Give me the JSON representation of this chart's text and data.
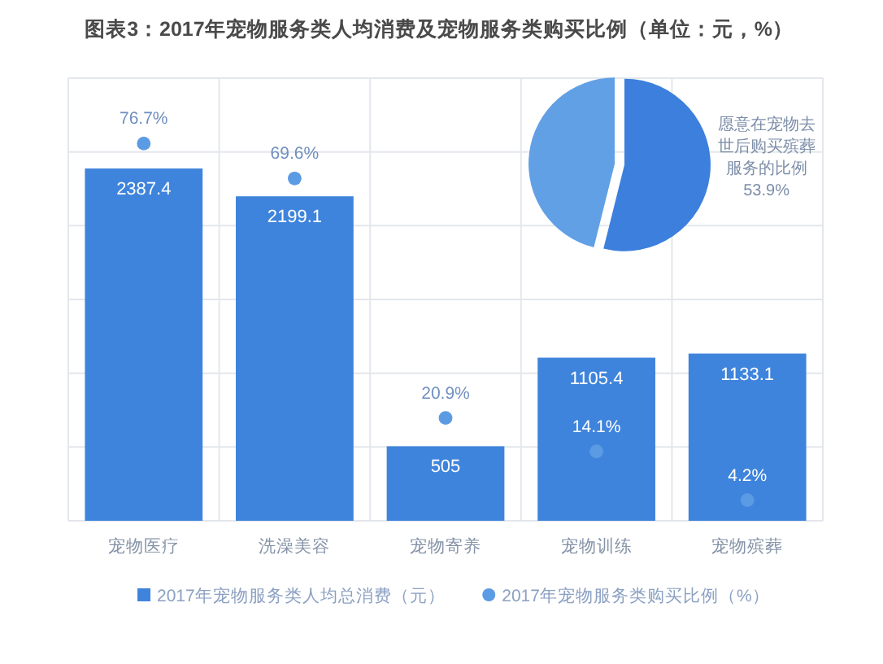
{
  "chart_data": [
    {
      "type": "bar",
      "title": "图表3：2017年宠物服务类人均消费及宠物服务类购买比例（单位：元，%）",
      "categories": [
        "宠物医疗",
        "洗澡美容",
        "宠物寄养",
        "宠物训练",
        "宠物殡葬"
      ],
      "series": [
        {
          "name": "2017年宠物服务类人均总消费（元）",
          "color": "#3f84dc",
          "values": [
            2387.4,
            2199.1,
            505,
            1105.4,
            1133.1
          ],
          "value_labels": [
            "2387.4",
            "2199.1",
            "505",
            "1105.4",
            "1133.1"
          ]
        },
        {
          "name": "2017年宠物服务类购买比例（%）",
          "type": "scatter",
          "axis": "y2",
          "color": "#5b9be3",
          "values": [
            76.7,
            69.6,
            20.9,
            14.1,
            4.2
          ],
          "value_labels": [
            "76.7%",
            "69.6%",
            "20.9%",
            "14.1%",
            "4.2%"
          ]
        }
      ],
      "ylim": [
        0,
        3000
      ],
      "yticks": [
        {
          "value": 0,
          "label": null
        },
        {
          "value": 500,
          "label": null
        },
        {
          "value": 1000,
          "label": null
        },
        {
          "value": 1500,
          "label": null
        },
        {
          "value": 2000,
          "label": null
        },
        {
          "value": 2500,
          "label": null
        },
        {
          "value": 3000,
          "label": null
        }
      ],
      "y2lim": [
        0,
        90
      ],
      "grid": true,
      "tick_labels": "x",
      "legend": "bottom",
      "marker": "circle"
    },
    {
      "type": "pie",
      "categories": [
        "愿意在宠物去世后购买殡葬服务的比例",
        null
      ],
      "values": [
        53.9,
        46.1
      ],
      "colors": [
        "#3d7fdc",
        "#62a0e6"
      ],
      "value_labels": [
        "53.9%",
        null
      ]
    }
  ]
}
